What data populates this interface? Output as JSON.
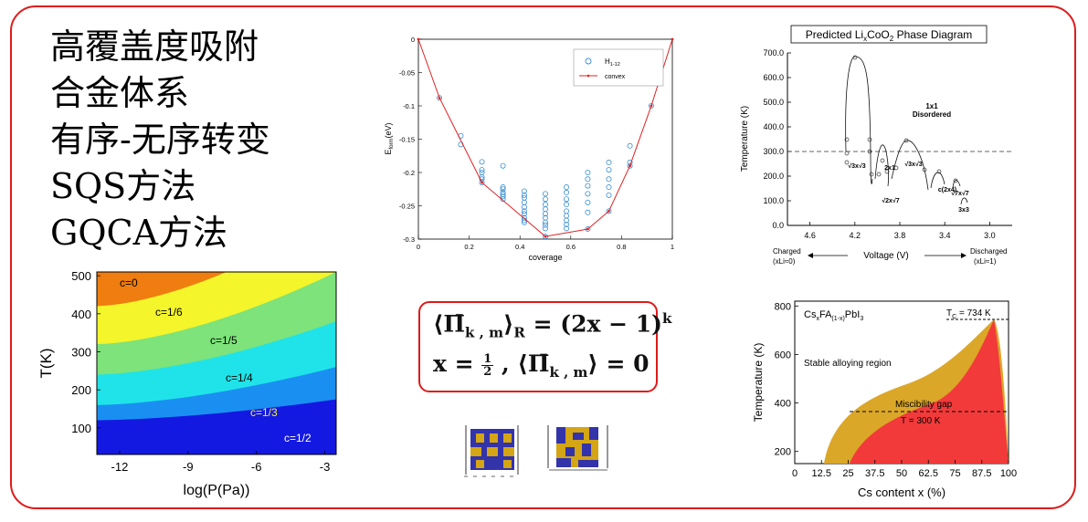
{
  "topics": [
    "高覆盖度吸附",
    "合金体系",
    "有序-无序转变",
    "SQS方法",
    "GQCA方法"
  ],
  "colors": {
    "frame": "#e01a1a",
    "tile_blue": "#3333aa",
    "tile_gold": "#d4a514"
  },
  "formula": {
    "line1": {
      "lhs": "⟨Π̄",
      "lhs_sub": "k , m",
      "lhs_close": "⟩",
      "lhs_sub2": "R",
      "eq": " = (2x − 1)",
      "sup": "k"
    },
    "line2": {
      "text1": "x = ",
      "frac_num": "1",
      "frac_den": "2",
      "text2": " ,  ⟨Π̄",
      "sub": "k , m",
      "text3": "⟩ = 0"
    }
  },
  "chart_data": [
    {
      "type": "scatter",
      "title": "",
      "xlabel": "coverage",
      "ylabel": "E_form(eV)",
      "xlim": [
        0,
        1
      ],
      "ylim": [
        -0.3,
        0
      ],
      "xticks": [
        "0",
        "0.2",
        "0.4",
        "0.6",
        "0.8",
        "1"
      ],
      "yticks": [
        "0",
        "-0.05",
        "-0.1",
        "-0.15",
        "-0.2",
        "-0.25",
        "-0.3"
      ],
      "legend_position": "top-right",
      "series": [
        {
          "name": "H1-12",
          "name_base": "H",
          "name_sub": "1-12",
          "marker": "circle",
          "color": "#3b8fd1",
          "x": [
            0.083,
            0.167,
            0.167,
            0.25,
            0.25,
            0.25,
            0.25,
            0.25,
            0.25,
            0.333,
            0.333,
            0.333,
            0.333,
            0.333,
            0.333,
            0.333,
            0.417,
            0.417,
            0.417,
            0.417,
            0.417,
            0.417,
            0.417,
            0.417,
            0.417,
            0.417,
            0.5,
            0.5,
            0.5,
            0.5,
            0.5,
            0.5,
            0.5,
            0.5,
            0.5,
            0.5,
            0.583,
            0.583,
            0.583,
            0.583,
            0.583,
            0.583,
            0.583,
            0.583,
            0.583,
            0.667,
            0.667,
            0.667,
            0.667,
            0.667,
            0.667,
            0.667,
            0.75,
            0.75,
            0.75,
            0.75,
            0.75,
            0.75,
            0.833,
            0.833,
            0.833,
            0.917
          ],
          "y": [
            -0.088,
            -0.145,
            -0.158,
            -0.184,
            -0.196,
            -0.2,
            -0.207,
            -0.21,
            -0.215,
            -0.19,
            -0.222,
            -0.225,
            -0.23,
            -0.233,
            -0.236,
            -0.24,
            -0.228,
            -0.234,
            -0.238,
            -0.245,
            -0.252,
            -0.258,
            -0.262,
            -0.268,
            -0.272,
            -0.275,
            -0.232,
            -0.24,
            -0.248,
            -0.255,
            -0.262,
            -0.268,
            -0.275,
            -0.279,
            -0.284,
            -0.296,
            -0.222,
            -0.23,
            -0.24,
            -0.248,
            -0.258,
            -0.265,
            -0.272,
            -0.278,
            -0.284,
            -0.2,
            -0.21,
            -0.22,
            -0.232,
            -0.245,
            -0.26,
            -0.285,
            -0.185,
            -0.196,
            -0.21,
            -0.222,
            -0.234,
            -0.258,
            -0.16,
            -0.185,
            -0.19,
            -0.1
          ]
        },
        {
          "name": "convex",
          "marker": "dot-line",
          "color": "#e02020",
          "x": [
            0,
            0.083,
            0.25,
            0.5,
            0.667,
            0.75,
            0.833,
            0.917,
            1
          ],
          "y": [
            0,
            -0.088,
            -0.215,
            -0.296,
            -0.285,
            -0.258,
            -0.19,
            -0.1,
            0
          ]
        }
      ]
    },
    {
      "type": "area",
      "title": "Predicted LixCoO2 Phase Diagram",
      "title_parts": [
        "Predicted Li",
        "x",
        "CoO",
        "2",
        " Phase Diagram"
      ],
      "xlabel": "Voltage (V)",
      "ylabel": "Temperature (K)",
      "xlim": [
        4.8,
        2.8
      ],
      "ylim": [
        0,
        700
      ],
      "xticks": [
        "4.6",
        "4.2",
        "3.8",
        "3.4",
        "3.0"
      ],
      "yticks": [
        "0.0",
        "100.0",
        "200.0",
        "300.0",
        "400.0",
        "500.0",
        "600.0",
        "700.0"
      ],
      "dashed_line_y": 300,
      "annotations": [
        "1x1",
        "Disordered",
        "√3x√3",
        "2x1",
        "√3x√3",
        "√2x√7",
        "c(2x4)",
        "√7x√7",
        "3x3"
      ],
      "footer_left": [
        "Charged",
        "(xLi≈0)"
      ],
      "footer_right": [
        "Discharged",
        "(xLi≈1)"
      ]
    },
    {
      "type": "heatmap",
      "title": "",
      "xlabel": "log(P(Pa))",
      "ylabel": "T(K)",
      "xlim": [
        -13,
        -2.5
      ],
      "ylim": [
        30,
        510
      ],
      "xticks": [
        "-12",
        "-9",
        "-6",
        "-3"
      ],
      "yticks": [
        "100",
        "200",
        "300",
        "400",
        "500"
      ],
      "regions": [
        {
          "label": "c=0",
          "color": "#f07d0f",
          "temp_at_left": 420,
          "temp_at_right": 660
        },
        {
          "label": "c=1/6",
          "color": "#f4f52a",
          "temp_at_left": 320,
          "temp_at_right": 510
        },
        {
          "label": "c=1/5",
          "color": "#7de37a",
          "temp_at_left": 240,
          "temp_at_right": 380
        },
        {
          "label": "c=1/4",
          "color": "#1fe3e8",
          "temp_at_left": 160,
          "temp_at_right": 260
        },
        {
          "label": "c=1/3",
          "color": "#1a8ff2",
          "temp_at_left": 120,
          "temp_at_right": 175
        },
        {
          "label": "c=1/2",
          "color": "#1419e2",
          "temp_at_left": 30,
          "temp_at_right": 30
        }
      ]
    },
    {
      "type": "area",
      "title": "CsxFA(1-x)PbI3",
      "title_parts": [
        "Cs",
        "x",
        "FA",
        "(1-x)",
        "PbI",
        "3"
      ],
      "xlabel": "Cs content x (%)",
      "ylabel": "Temperature (K)",
      "xlim": [
        0,
        100
      ],
      "ylim": [
        150,
        820
      ],
      "xticks": [
        "0",
        "12.5",
        "25",
        "37.5",
        "50",
        "62.5",
        "75",
        "87.5",
        "100"
      ],
      "yticks": [
        "200",
        "400",
        "600",
        "800"
      ],
      "annotations": [
        "Stable alloying region",
        "Miscibility gap",
        "T = 300 K"
      ],
      "tc_label": "T",
      "tc_sub": "C",
      "tc_value": " = 734 K",
      "tc": 734,
      "t_line": 300,
      "spinodal_color": "#f23a3a",
      "binodal_color": "#dba728"
    }
  ]
}
